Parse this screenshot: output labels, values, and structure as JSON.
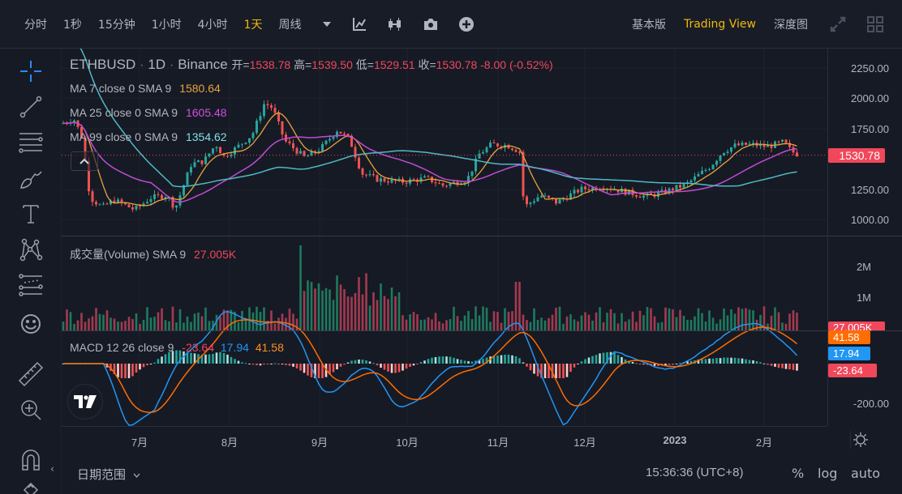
{
  "toolbar": {
    "timeframes": [
      {
        "label": "分时",
        "active": false
      },
      {
        "label": "1秒",
        "active": false
      },
      {
        "label": "15分钟",
        "active": false
      },
      {
        "label": "1小时",
        "active": false
      },
      {
        "label": "4小时",
        "active": false
      },
      {
        "label": "1天",
        "active": true
      },
      {
        "label": "周线",
        "active": false
      }
    ],
    "more_icon": "caret-down-icon",
    "icons": [
      "indicator-icon",
      "candle-type-icon",
      "camera-icon",
      "add-icon"
    ],
    "views": [
      {
        "label": "基本版",
        "active": false
      },
      {
        "label": "Trading View",
        "active": true
      },
      {
        "label": "深度图",
        "active": false
      }
    ],
    "right_icons": [
      "fullscreen-icon",
      "layout-grid-icon"
    ]
  },
  "sidebar": {
    "tools": [
      "crosshair-icon",
      "trend-line-icon",
      "horizontal-lines-icon",
      "brush-icon",
      "text-icon",
      "pattern-icon",
      "prediction-icon",
      "emoji-icon",
      "ruler-icon",
      "zoom-in-icon",
      "magnet-icon",
      "lock-icon"
    ],
    "collapse_label": "‹"
  },
  "legend": {
    "symbol": "ETHBUSD",
    "interval": "1D",
    "exchange": "Binance",
    "open_label": "开=",
    "open": "1538.78",
    "high_label": "高=",
    "high": "1539.50",
    "low_label": "低=",
    "low": "1529.51",
    "close_label": "收=",
    "close": "1530.78",
    "change": "-8.00 (-0.52%)",
    "ma7_label": "MA 7 close 0 SMA 9",
    "ma7_value": "1580.64",
    "ma25_label": "MA 25 close 0 SMA 9",
    "ma25_value": "1605.48",
    "ma99_label": "MA 99 close 0 SMA 9",
    "ma99_value": "1354.62",
    "volume_label": "成交量(Volume) SMA 9",
    "volume_value": "27.005K",
    "macd_label": "MACD 12 26 close 9",
    "macd_hist": "-23.64",
    "macd_line": "17.94",
    "macd_signal": "41.58"
  },
  "price_axis": {
    "ticks": [
      "2250.00",
      "2000.00",
      "1750.00",
      "1250.00",
      "1000.00"
    ],
    "current_price": "1530.78",
    "volume_ticks": [
      "2M",
      "1M"
    ],
    "volume_tag": "27.005K",
    "macd_tags": [
      "41.58",
      "17.94",
      "-23.64"
    ],
    "macd_ticks": [
      "-200.00"
    ]
  },
  "time_axis": {
    "labels": [
      "7月",
      "8月",
      "9月",
      "10月",
      "11月",
      "12月",
      "2023",
      "2月"
    ],
    "settings_icon": "gear-icon"
  },
  "bottom": {
    "date_range_label": "日期范围",
    "clock": "15:36:36 (UTC+8)",
    "percent": "%",
    "log": "log",
    "auto": "auto"
  },
  "colors": {
    "up": "#26a69a",
    "down": "#ef5350",
    "accent": "#f0b90b",
    "ma7": "#e8a33d",
    "ma25": "#c04cd6",
    "ma99": "#4fb9c4",
    "macd_line": "#2196f3",
    "macd_signal": "#ff6d00",
    "price_tag": "#f0475a"
  },
  "chart_data": {
    "type": "candlestick",
    "title": "ETHBUSD · 1D · Binance",
    "x_labels": [
      "7月",
      "8月",
      "9月",
      "10月",
      "11月",
      "12月",
      "2023",
      "2月"
    ],
    "ylim": [
      900,
      2300
    ],
    "y_ticks": [
      1000,
      1250,
      1750,
      2000,
      2250
    ],
    "approx_close_by_month_start": {
      "Jun": 1800,
      "Jul": 1070,
      "Aug": 1680,
      "Sep": 1560,
      "Oct": 1330,
      "Nov": 1580,
      "Dec": 1280,
      "Jan": 1200,
      "Feb": 1640,
      "Feb_end": 1531
    },
    "ohlc_last": {
      "open": 1538.78,
      "high": 1539.5,
      "low": 1529.51,
      "close": 1530.78
    },
    "ma": {
      "ma7": 1580.64,
      "ma25": 1605.48,
      "ma99": 1354.62
    },
    "volume_sma9": "27.005K",
    "macd": {
      "hist": -23.64,
      "macd": 17.94,
      "signal": 41.58
    }
  }
}
